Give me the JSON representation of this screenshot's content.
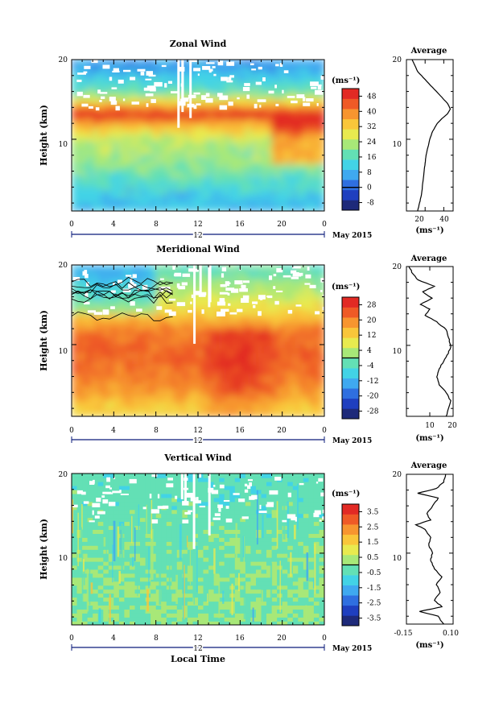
{
  "figure": {
    "x_ticks": [
      "0",
      "4",
      "8",
      "12",
      "16",
      "20",
      "0"
    ],
    "date_marker": "12",
    "date_label": "May 2015",
    "x_axis_label": "Local Time",
    "units_label": "(ms⁻¹)"
  },
  "chart_data": [
    {
      "type": "heatmap",
      "name": "zonal",
      "title": "Zonal Wind",
      "ylabel": "Height (km)",
      "xlabel": "",
      "y_ticks": [
        "10",
        "20"
      ],
      "xlim": [
        0,
        24
      ],
      "ylim": [
        1,
        20
      ],
      "colorbar_unit": "(ms⁻¹)",
      "colorbar_ticks": [
        "48",
        "40",
        "32",
        "24",
        "16",
        "8",
        "0",
        "-8"
      ],
      "colorbar_range": [
        -12,
        52
      ],
      "colors": [
        "#1e2a7a",
        "#1f3fbf",
        "#2f6fe0",
        "#3fa9f0",
        "#42d3e6",
        "#63e0b5",
        "#a8e878",
        "#e8ea4f",
        "#f9c63a",
        "#f7952f",
        "#ef5a26",
        "#e22a24"
      ],
      "field": [
        {
          "h": 19.0,
          "v": 6
        },
        {
          "h": 16.0,
          "v": 18
        },
        {
          "h": 14.5,
          "v": 34
        },
        {
          "h": 13.2,
          "v": 50
        },
        {
          "h": 12.0,
          "v": 36
        },
        {
          "h": 10.0,
          "v": 24
        },
        {
          "h": 7.5,
          "v": 22
        },
        {
          "h": 5.0,
          "v": 16
        },
        {
          "h": 2.5,
          "v": 10
        }
      ],
      "average": {
        "title": "Average",
        "xlim": [
          0,
          50
        ],
        "x_ticks": [
          "20",
          "40"
        ],
        "y_ticks": [
          "10",
          "20"
        ],
        "unit": "(ms⁻¹)",
        "profile": [
          {
            "h": 1.0,
            "v": 12
          },
          {
            "h": 2.0,
            "v": 14
          },
          {
            "h": 3.0,
            "v": 16
          },
          {
            "h": 4.0,
            "v": 17
          },
          {
            "h": 5.0,
            "v": 18
          },
          {
            "h": 6.0,
            "v": 19
          },
          {
            "h": 7.0,
            "v": 20
          },
          {
            "h": 8.0,
            "v": 21
          },
          {
            "h": 9.0,
            "v": 23
          },
          {
            "h": 10.0,
            "v": 25
          },
          {
            "h": 11.0,
            "v": 28
          },
          {
            "h": 12.0,
            "v": 33
          },
          {
            "h": 12.6,
            "v": 38
          },
          {
            "h": 13.2,
            "v": 44
          },
          {
            "h": 13.8,
            "v": 47
          },
          {
            "h": 14.5,
            "v": 44
          },
          {
            "h": 15.5,
            "v": 36
          },
          {
            "h": 16.5,
            "v": 28
          },
          {
            "h": 17.5,
            "v": 20
          },
          {
            "h": 18.5,
            "v": 12
          },
          {
            "h": 19.5,
            "v": 8
          },
          {
            "h": 20.0,
            "v": 6
          }
        ]
      }
    },
    {
      "type": "heatmap",
      "name": "meridional",
      "title": "Meridional Wind",
      "ylabel": "Height (km)",
      "xlabel": "",
      "y_ticks": [
        "10",
        "20"
      ],
      "xlim": [
        0,
        24
      ],
      "ylim": [
        1,
        20
      ],
      "colorbar_unit": "(ms⁻¹)",
      "colorbar_ticks": [
        "28",
        "20",
        "12",
        "4",
        "-4",
        "-12",
        "-20",
        "-28"
      ],
      "colorbar_range": [
        -32,
        32
      ],
      "colors": [
        "#1e2a7a",
        "#1f3fbf",
        "#2f6fe0",
        "#3fa9f0",
        "#42d3e6",
        "#63e0b5",
        "#a8e878",
        "#e8ea4f",
        "#f9c63a",
        "#f7952f",
        "#ef5a26",
        "#e22a24"
      ],
      "field": [
        {
          "h": 19.0,
          "v": -2
        },
        {
          "h": 16.0,
          "v": 6
        },
        {
          "h": 13.5,
          "v": 14
        },
        {
          "h": 11.5,
          "v": 22
        },
        {
          "h": 9.0,
          "v": 24
        },
        {
          "h": 6.5,
          "v": 22
        },
        {
          "h": 4.0,
          "v": 18
        },
        {
          "h": 2.0,
          "v": 12
        }
      ],
      "average": {
        "title": "Average",
        "xlim": [
          0,
          20
        ],
        "x_ticks": [
          "10",
          "20"
        ],
        "y_ticks": [
          "10",
          "20"
        ],
        "unit": "(ms⁻¹)",
        "profile": [
          {
            "h": 1.0,
            "v": 17
          },
          {
            "h": 2.0,
            "v": 18
          },
          {
            "h": 3.0,
            "v": 19
          },
          {
            "h": 4.0,
            "v": 17
          },
          {
            "h": 5.0,
            "v": 14
          },
          {
            "h": 6.0,
            "v": 13
          },
          {
            "h": 7.0,
            "v": 14
          },
          {
            "h": 8.0,
            "v": 16
          },
          {
            "h": 9.0,
            "v": 18
          },
          {
            "h": 10.0,
            "v": 19
          },
          {
            "h": 11.0,
            "v": 18
          },
          {
            "h": 12.0,
            "v": 17
          },
          {
            "h": 13.0,
            "v": 13
          },
          {
            "h": 13.8,
            "v": 8
          },
          {
            "h": 14.6,
            "v": 10
          },
          {
            "h": 15.2,
            "v": 6
          },
          {
            "h": 16.0,
            "v": 11
          },
          {
            "h": 16.8,
            "v": 7
          },
          {
            "h": 17.5,
            "v": 12
          },
          {
            "h": 18.3,
            "v": 5
          },
          {
            "h": 19.0,
            "v": 3
          },
          {
            "h": 20.0,
            "v": 1
          }
        ]
      }
    },
    {
      "type": "heatmap",
      "name": "vertical",
      "title": "Vertical Wind",
      "ylabel": "Height (km)",
      "xlabel": "Local Time",
      "y_ticks": [
        "10",
        "20"
      ],
      "xlim": [
        0,
        24
      ],
      "ylim": [
        1,
        20
      ],
      "colorbar_unit": "(ms⁻¹)",
      "colorbar_ticks": [
        "3.5",
        "2.5",
        "1.5",
        "0.5",
        "-0.5",
        "-1.5",
        "-2.5",
        "-3.5"
      ],
      "colorbar_range": [
        -4,
        4
      ],
      "colors": [
        "#1e2a7a",
        "#1f3fbf",
        "#2f6fe0",
        "#3fa9f0",
        "#42d3e6",
        "#63e0b5",
        "#a8e878",
        "#e8ea4f",
        "#f9c63a",
        "#f7952f",
        "#ef5a26",
        "#e22a24"
      ],
      "field": [
        {
          "h": 19.0,
          "v": -0.4
        },
        {
          "h": 15.0,
          "v": -0.3
        },
        {
          "h": 11.0,
          "v": -0.2
        },
        {
          "h": 7.0,
          "v": -0.1
        },
        {
          "h": 3.0,
          "v": 0.0
        }
      ],
      "average": {
        "title": "Average",
        "xlim": [
          -0.15,
          0.1
        ],
        "x_ticks": [
          "-0.15",
          "0.10"
        ],
        "y_ticks": [
          "10",
          "20"
        ],
        "unit": "(ms⁻¹)",
        "profile": [
          {
            "h": 1.0,
            "v": 0.05
          },
          {
            "h": 2.0,
            "v": 0.02
          },
          {
            "h": 2.6,
            "v": -0.08
          },
          {
            "h": 3.2,
            "v": 0.04
          },
          {
            "h": 4.0,
            "v": 0.0
          },
          {
            "h": 5.0,
            "v": 0.03
          },
          {
            "h": 6.0,
            "v": 0.01
          },
          {
            "h": 7.0,
            "v": 0.04
          },
          {
            "h": 8.0,
            "v": 0.0
          },
          {
            "h": 9.0,
            "v": -0.02
          },
          {
            "h": 10.0,
            "v": -0.01
          },
          {
            "h": 11.0,
            "v": -0.03
          },
          {
            "h": 12.0,
            "v": -0.02
          },
          {
            "h": 13.0,
            "v": -0.05
          },
          {
            "h": 13.6,
            "v": -0.1
          },
          {
            "h": 14.2,
            "v": -0.02
          },
          {
            "h": 15.0,
            "v": -0.04
          },
          {
            "h": 16.0,
            "v": -0.01
          },
          {
            "h": 17.0,
            "v": 0.02
          },
          {
            "h": 17.6,
            "v": -0.09
          },
          {
            "h": 18.2,
            "v": 0.01
          },
          {
            "h": 19.0,
            "v": 0.05
          },
          {
            "h": 20.0,
            "v": 0.06
          }
        ]
      }
    }
  ]
}
